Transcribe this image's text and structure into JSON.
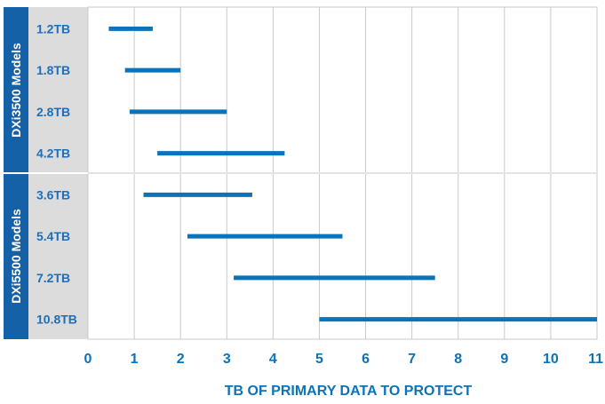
{
  "chart_data": {
    "type": "bar",
    "subtype": "floating-range-horizontal",
    "title": "",
    "xlabel": "TB OF PRIMARY DATA TO PROTECT",
    "ylabel": "",
    "xlim": [
      0,
      11
    ],
    "xticks": [
      "0",
      "1",
      "2",
      "3",
      "4",
      "5",
      "6",
      "7",
      "8",
      "9",
      "10",
      "11"
    ],
    "grid": true,
    "groups": [
      {
        "label": "DXi3500 Models",
        "categories": [
          "1.2TB",
          "1.8TB",
          "2.8TB",
          "4.2TB"
        ],
        "ranges": [
          [
            0.45,
            1.4
          ],
          [
            0.8,
            2.0
          ],
          [
            0.9,
            3.0
          ],
          [
            1.5,
            4.25
          ]
        ]
      },
      {
        "label": "DXi5500 Models",
        "categories": [
          "3.6TB",
          "5.4TB",
          "7.2TB",
          "10.8TB"
        ],
        "ranges": [
          [
            1.2,
            3.55
          ],
          [
            2.15,
            5.5
          ],
          [
            3.15,
            7.5
          ],
          [
            5.0,
            11.0
          ]
        ]
      }
    ],
    "colors": {
      "bar": "#0a73b9",
      "group_band": "#1561a8",
      "label_column": "#dcdcdc",
      "grid": "#c9c9c9",
      "tick_text": "#0a73b9"
    }
  }
}
